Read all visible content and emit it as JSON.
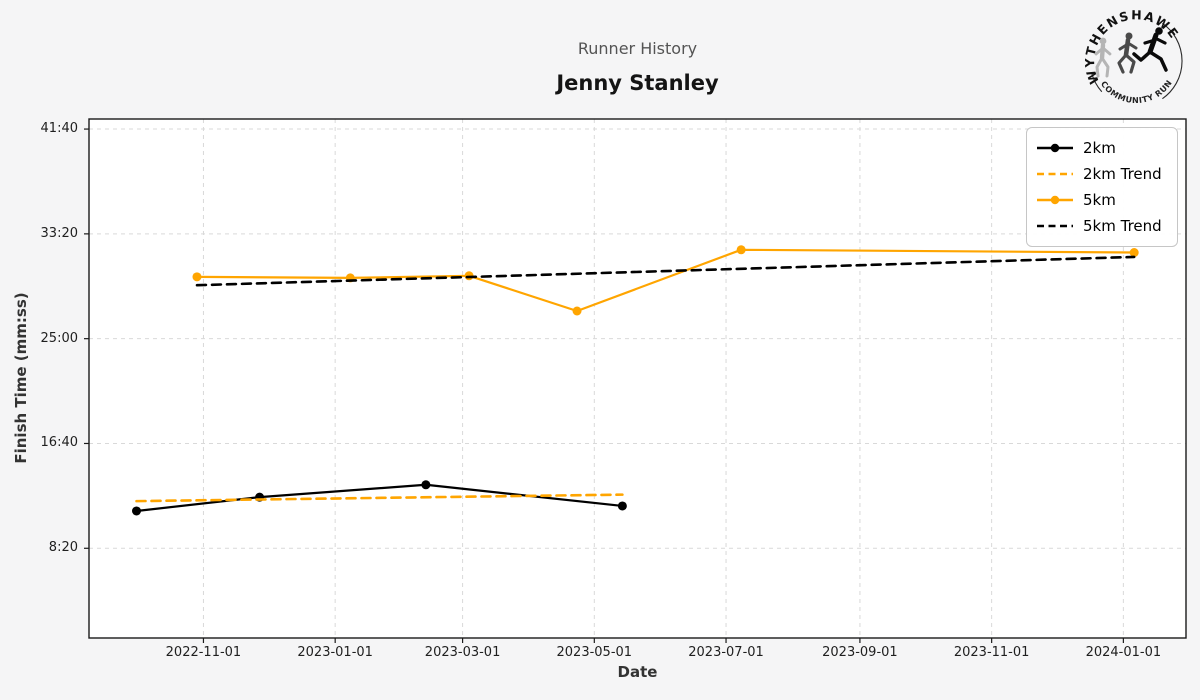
{
  "header": {
    "title": "Runner History",
    "runner_name": "Jenny Stanley"
  },
  "logo": {
    "top_text": "WYTHENSHAWE",
    "bottom_text": "COMMUNITY RUN"
  },
  "colors": {
    "accent_orange": "#FFA500",
    "series_black": "#000000",
    "figure_bg": "#f5f5f6",
    "plot_bg": "#ffffff",
    "grid": "#d9d9d9",
    "spine": "#1a1a1a"
  },
  "chart_data": {
    "type": "line",
    "title": "Runner History",
    "subtitle": "Jenny Stanley",
    "xlabel": "Date",
    "ylabel": "Finish Time (mm:ss)",
    "grid": true,
    "legend_position": "upper right",
    "legend": [
      "2km",
      "2km Trend",
      "5km",
      "5km Trend"
    ],
    "x_tick_labels": [
      "2022-11-01",
      "2023-01-01",
      "2023-03-01",
      "2023-05-01",
      "2023-07-01",
      "2023-09-01",
      "2023-11-01",
      "2024-01-01"
    ],
    "y_tick_labels": [
      "41:40",
      "33:20",
      "25:00",
      "16:40",
      "8:20"
    ],
    "y_tick_seconds": [
      2500,
      2000,
      1500,
      1000,
      500
    ],
    "x_domain": [
      "2022-09-09",
      "2024-01-30"
    ],
    "y_domain_seconds": [
      72,
      2548
    ],
    "series": [
      {
        "name": "2km",
        "color": "#000000",
        "style": "solid",
        "markers": true,
        "points": [
          {
            "date": "2022-10-01",
            "time": "11:18",
            "seconds": 678
          },
          {
            "date": "2022-11-27",
            "time": "12:24",
            "seconds": 744
          },
          {
            "date": "2023-02-12",
            "time": "13:23",
            "seconds": 803
          },
          {
            "date": "2023-05-14",
            "time": "11:42",
            "seconds": 702
          }
        ]
      },
      {
        "name": "2km Trend",
        "color": "#FFA500",
        "style": "dashed",
        "markers": false,
        "points": [
          {
            "date": "2022-10-01",
            "time": "12:05",
            "seconds": 725
          },
          {
            "date": "2023-05-14",
            "time": "12:36",
            "seconds": 756
          }
        ]
      },
      {
        "name": "5km",
        "color": "#FFA500",
        "style": "solid",
        "markers": true,
        "points": [
          {
            "date": "2022-10-29",
            "time": "29:55",
            "seconds": 1795
          },
          {
            "date": "2023-01-08",
            "time": "29:50",
            "seconds": 1790
          },
          {
            "date": "2023-03-04",
            "time": "30:00",
            "seconds": 1800
          },
          {
            "date": "2023-04-23",
            "time": "27:12",
            "seconds": 1632
          },
          {
            "date": "2023-07-08",
            "time": "32:04",
            "seconds": 1924
          },
          {
            "date": "2024-01-06",
            "time": "31:51",
            "seconds": 1911
          }
        ]
      },
      {
        "name": "5km Trend",
        "color": "#000000",
        "style": "dashed",
        "markers": false,
        "points": [
          {
            "date": "2022-10-29",
            "time": "29:15",
            "seconds": 1755
          },
          {
            "date": "2024-01-06",
            "time": "31:30",
            "seconds": 1890
          }
        ]
      }
    ]
  }
}
